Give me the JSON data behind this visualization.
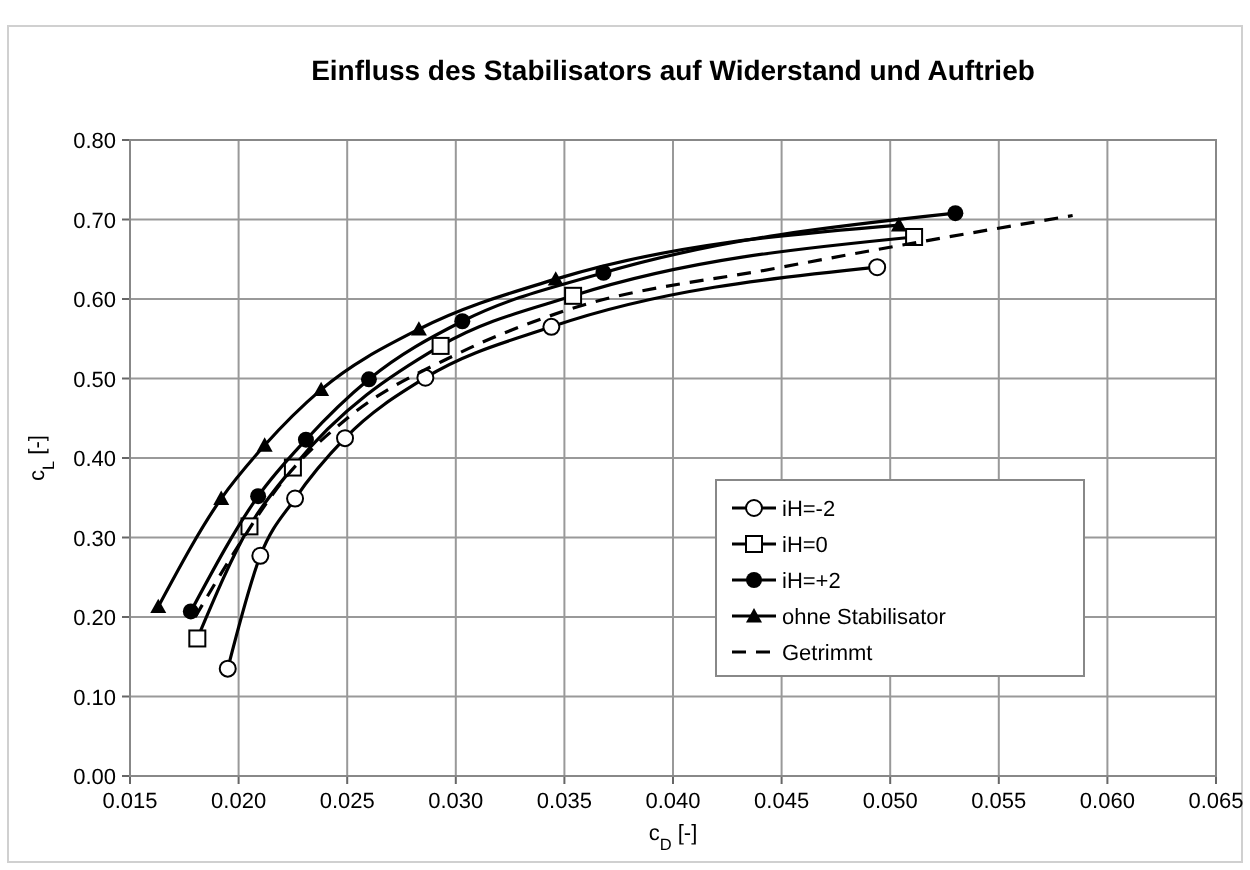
{
  "chart_data": {
    "type": "line",
    "title": "Einfluss des Stabilisators auf Widerstand und Auftrieb",
    "xlabel": "c$_{D}$ [-]",
    "ylabel": "c$_{L}$ [-]",
    "xlim": [
      0.015,
      0.065
    ],
    "xticks": [
      {
        "value": 0.015,
        "label": "0.015"
      },
      {
        "value": 0.02,
        "label": "0.020"
      },
      {
        "value": 0.025,
        "label": "0.025"
      },
      {
        "value": 0.03,
        "label": "0.030"
      },
      {
        "value": 0.035,
        "label": "0.035"
      },
      {
        "value": 0.04,
        "label": "0.040"
      },
      {
        "value": 0.045,
        "label": "0.045"
      },
      {
        "value": 0.05,
        "label": "0.050"
      },
      {
        "value": 0.055,
        "label": "0.055"
      },
      {
        "value": 0.06,
        "label": "0.060"
      },
      {
        "value": 0.065,
        "label": "0.065"
      }
    ],
    "ylim": [
      0,
      0.8
    ],
    "yticks": [
      {
        "value": 0,
        "label": "0.00"
      },
      {
        "value": 0.1,
        "label": "0.10"
      },
      {
        "value": 0.2,
        "label": "0.20"
      },
      {
        "value": 0.3,
        "label": "0.30"
      },
      {
        "value": 0.4,
        "label": "0.40"
      },
      {
        "value": 0.5,
        "label": "0.50"
      },
      {
        "value": 0.6,
        "label": "0.60"
      },
      {
        "value": 0.7,
        "label": "0.70"
      },
      {
        "value": 0.8,
        "label": "0.80"
      }
    ],
    "grid": true,
    "legend": "right",
    "line_style": "solid",
    "series": [
      {
        "name": "iH=-2",
        "color": "#000000",
        "marker": "circle-open",
        "x": [
          0.0195,
          0.021,
          0.0226,
          0.0249,
          0.0286,
          0.0344,
          0.0494
        ],
        "values": [
          0.135,
          0.277,
          0.349,
          0.425,
          0.501,
          0.565,
          0.64
        ]
      },
      {
        "name": "iH=0",
        "color": "#000000",
        "marker": "square",
        "x": [
          0.0181,
          0.0205,
          0.0225,
          0.0293,
          0.0354,
          0.0511
        ],
        "values": [
          0.173,
          0.314,
          0.388,
          0.541,
          0.604,
          0.678
        ]
      },
      {
        "name": "iH=+2",
        "color": "#000000",
        "marker": "circle",
        "x": [
          0.0178,
          0.0209,
          0.0231,
          0.026,
          0.0303,
          0.0368,
          0.053
        ],
        "values": [
          0.207,
          0.352,
          0.423,
          0.499,
          0.572,
          0.633,
          0.708
        ]
      },
      {
        "name": "ohne Stabilisator",
        "color": "#000000",
        "marker": "triangle",
        "x": [
          0.0163,
          0.0192,
          0.0212,
          0.0238,
          0.0283,
          0.0346,
          0.0504
        ],
        "values": [
          0.213,
          0.349,
          0.416,
          0.486,
          0.562,
          0.625,
          0.693
        ]
      },
      {
        "name": "Getrimmt",
        "color": "#000000",
        "marker": "none",
        "line_style": "dashed",
        "x": [
          0.018,
          0.02,
          0.022,
          0.025,
          0.03,
          0.035,
          0.045,
          0.0584
        ],
        "values": [
          0.2,
          0.29,
          0.37,
          0.45,
          0.53,
          0.585,
          0.64,
          0.705
        ]
      }
    ]
  }
}
